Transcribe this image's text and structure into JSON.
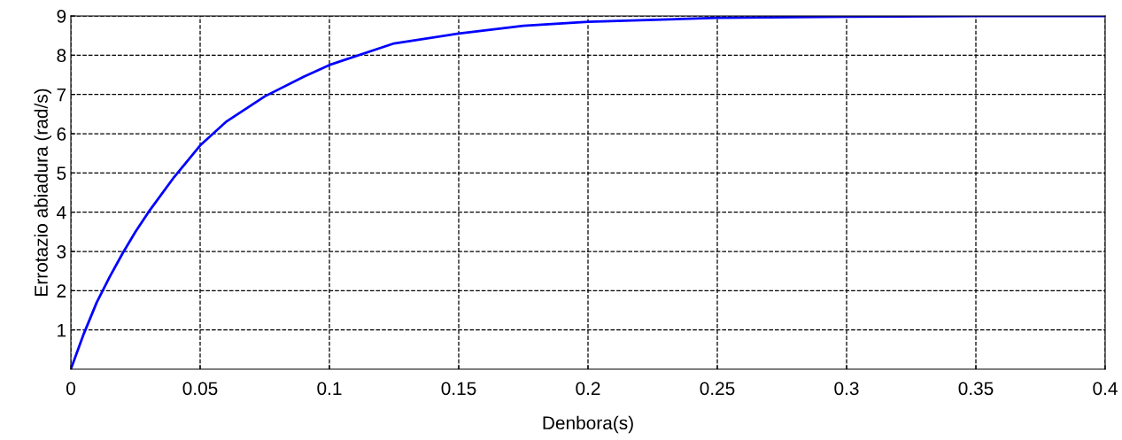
{
  "chart_data": {
    "type": "line",
    "xlabel": "Denbora(s)",
    "ylabel": "Errotazio abiadura (rad/s)",
    "x": [
      0,
      0.005,
      0.01,
      0.015,
      0.02,
      0.025,
      0.03,
      0.04,
      0.05,
      0.06,
      0.075,
      0.09,
      0.1,
      0.125,
      0.15,
      0.175,
      0.2,
      0.25,
      0.3,
      0.35,
      0.4
    ],
    "series": [
      {
        "color": "#0000ff",
        "values": [
          0,
          0.9,
          1.7,
          2.35,
          2.95,
          3.5,
          4.0,
          4.9,
          5.7,
          6.3,
          6.95,
          7.45,
          7.75,
          8.3,
          8.55,
          8.75,
          8.85,
          8.95,
          8.98,
          9.0,
          9.0
        ]
      }
    ],
    "xlim": [
      0,
      0.4
    ],
    "ylim": [
      0,
      9
    ],
    "xticks": [
      0,
      0.05,
      0.1,
      0.15,
      0.2,
      0.25,
      0.3,
      0.35,
      0.4
    ],
    "yticks": [
      1,
      2,
      3,
      4,
      5,
      6,
      7,
      8,
      9
    ],
    "grid": true,
    "line_style": "solid",
    "marker": "none",
    "legend": false
  }
}
